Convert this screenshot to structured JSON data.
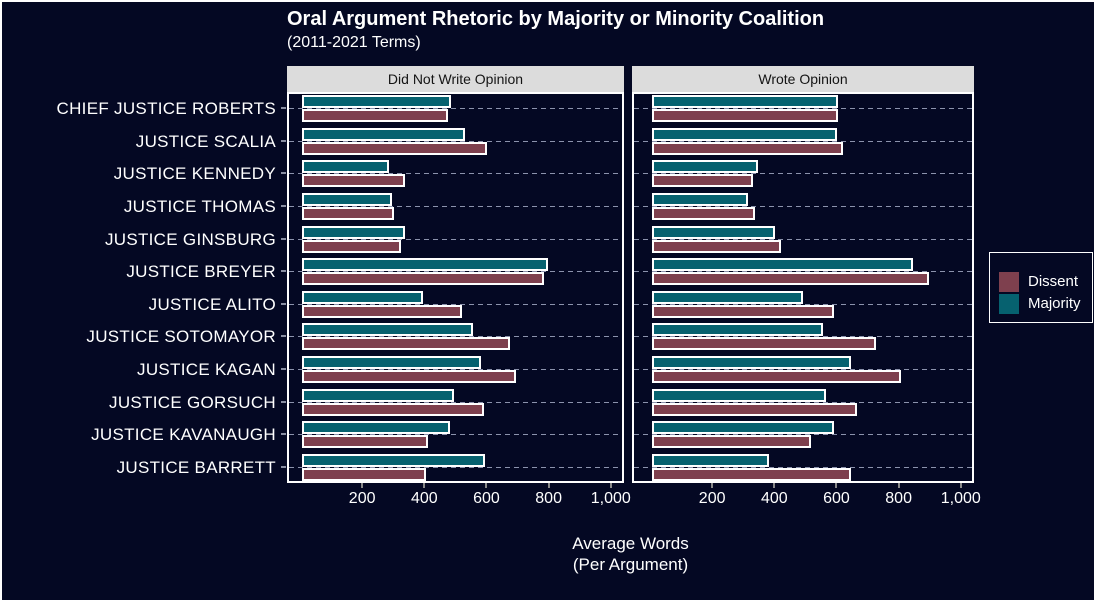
{
  "chart_data": {
    "type": "bar",
    "orientation": "horizontal",
    "title": "Oral Argument Rhetoric by Majority or Minority Coalition",
    "subtitle": "(2011-2021 Terms)",
    "xlabel_line1": "Average Words",
    "xlabel_line2": "(Per Argument)",
    "xlim": [
      0,
      1045
    ],
    "grid": "horizontal dashed line per category",
    "legend_position": "right",
    "x_ticks": [
      {
        "value": 200,
        "label": "200"
      },
      {
        "value": 400,
        "label": "400"
      },
      {
        "value": 600,
        "label": "600"
      },
      {
        "value": 800,
        "label": "800"
      },
      {
        "value": 1000,
        "label": "1,000"
      }
    ],
    "categories": [
      "CHIEF JUSTICE ROBERTS",
      "JUSTICE SCALIA",
      "JUSTICE KENNEDY",
      "JUSTICE THOMAS",
      "JUSTICE GINSBURG",
      "JUSTICE BREYER",
      "JUSTICE ALITO",
      "JUSTICE SOTOMAYOR",
      "JUSTICE KAGAN",
      "JUSTICE GORSUCH",
      "JUSTICE KAVANAUGH",
      "JUSTICE BARRETT"
    ],
    "legend": [
      {
        "name": "Dissent",
        "color": "#7E404E"
      },
      {
        "name": "Majority",
        "color": "#06616F"
      }
    ],
    "panels": [
      {
        "label": "Did Not Write Opinion",
        "series": [
          {
            "name": "Majority",
            "values": [
              480,
              525,
              280,
              290,
              330,
              790,
              390,
              550,
              575,
              490,
              475,
              590
            ]
          },
          {
            "name": "Dissent",
            "values": [
              470,
              595,
              330,
              295,
              320,
              780,
              515,
              670,
              690,
              585,
              405,
              400
            ]
          }
        ]
      },
      {
        "label": "Wrote Opinion",
        "series": [
          {
            "name": "Majority",
            "values": [
              600,
              595,
              340,
              310,
              395,
              840,
              485,
              550,
              640,
              560,
              585,
              375
            ]
          },
          {
            "name": "Dissent",
            "values": [
              600,
              615,
              325,
              330,
              415,
              890,
              585,
              720,
              800,
              660,
              510,
              640
            ]
          }
        ]
      }
    ]
  },
  "theme": {
    "background": "#040823",
    "panel_border": "#FFFFFF",
    "strip_background": "#DCDCDC",
    "strip_text": "#141414",
    "text": "#FFFFFF",
    "gridline": "#8C93AD",
    "bar_border": "#FFFFFF",
    "dissent": "#7E404E",
    "majority": "#06616F"
  }
}
